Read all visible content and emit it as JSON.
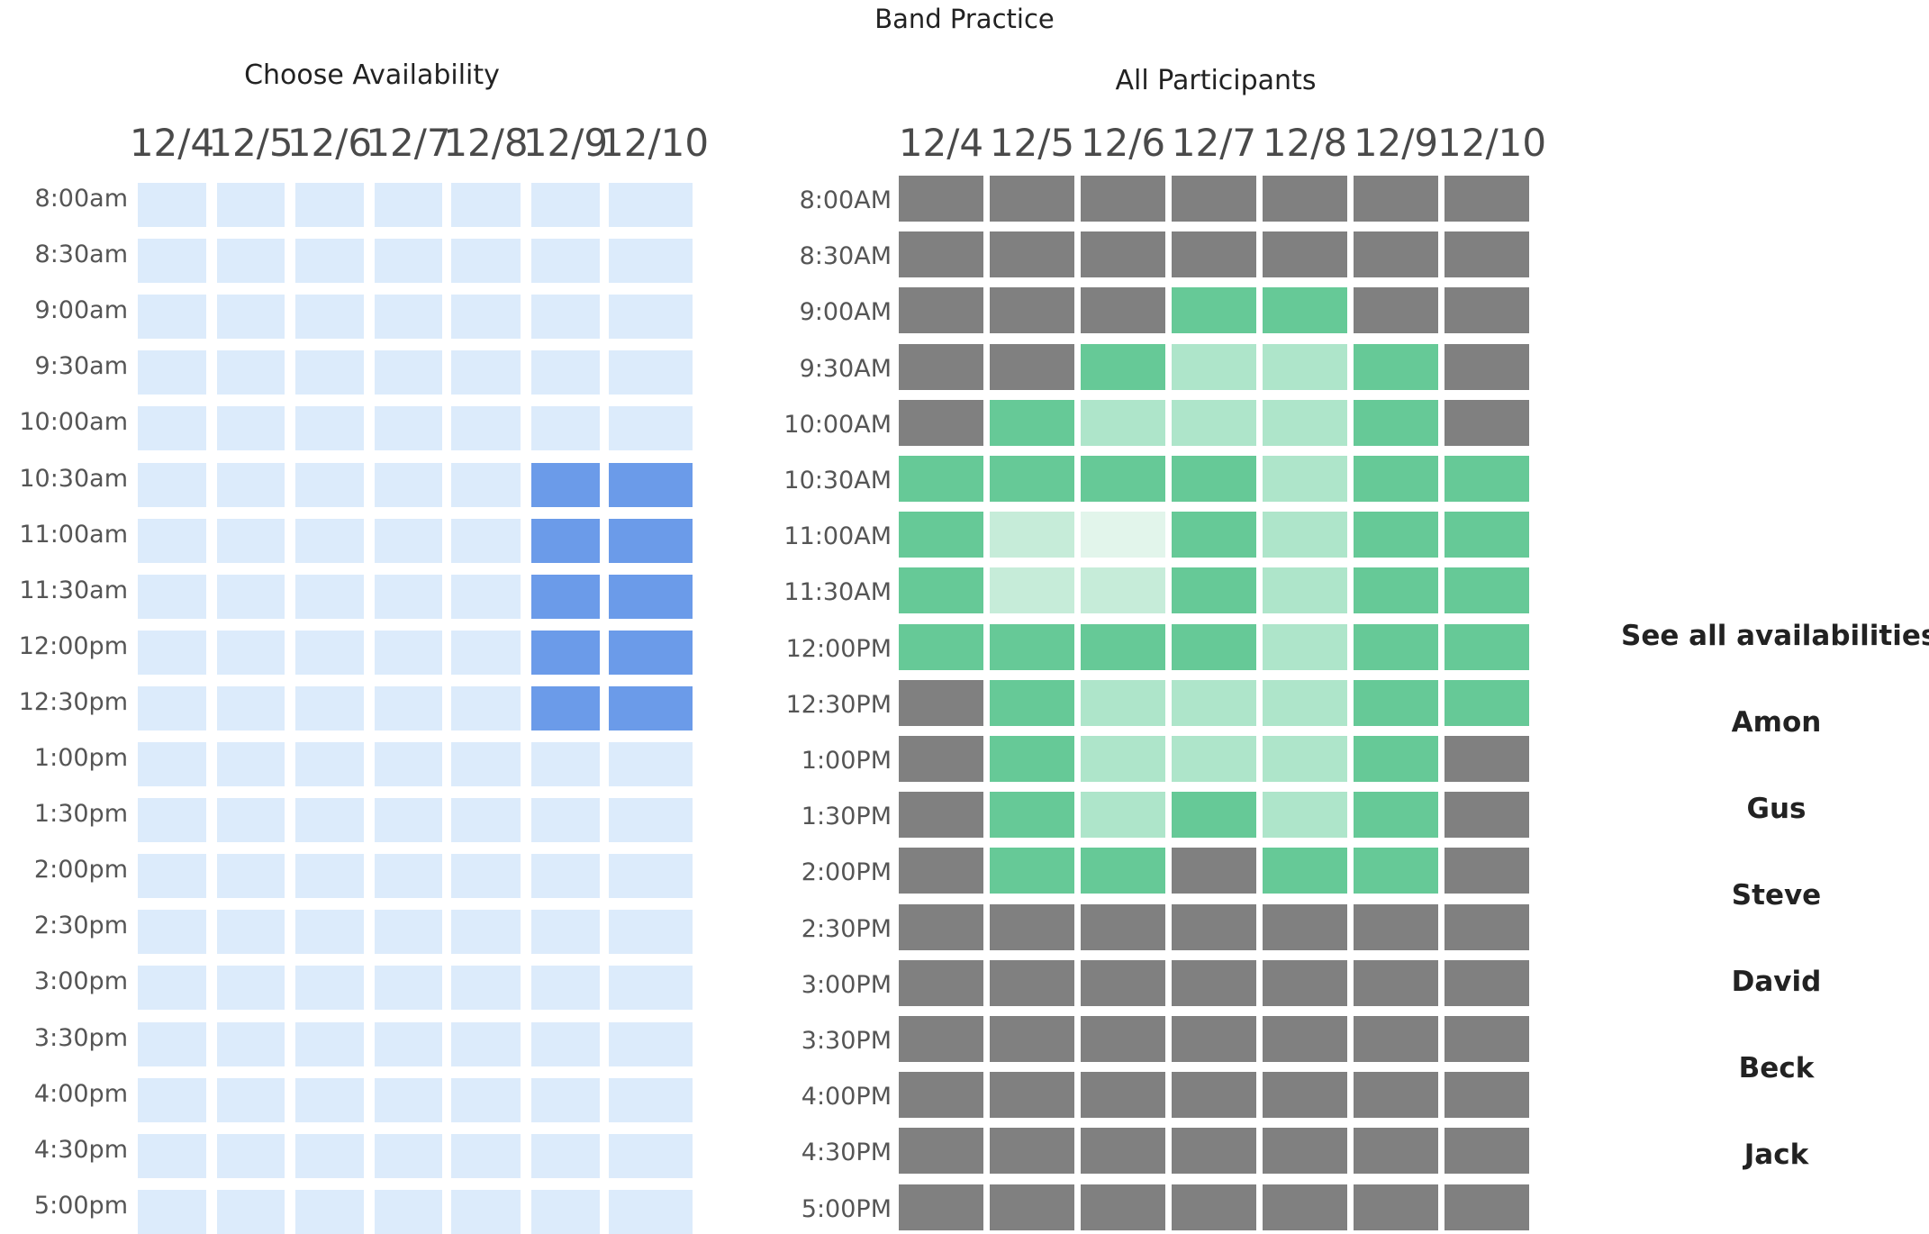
{
  "event": {
    "title": "Band Practice"
  },
  "choose": {
    "title": "Choose Availability",
    "days": [
      "12/4",
      "12/5",
      "12/6",
      "12/7",
      "12/8",
      "12/9",
      "12/10"
    ],
    "times": [
      "8:00am",
      "8:30am",
      "9:00am",
      "9:30am",
      "10:00am",
      "10:30am",
      "11:00am",
      "11:30am",
      "12:00pm",
      "12:30pm",
      "1:00pm",
      "1:30pm",
      "2:00pm",
      "2:30pm",
      "3:00pm",
      "3:30pm",
      "4:00pm",
      "4:30pm",
      "5:00pm"
    ],
    "selected": [
      [
        0,
        0,
        0,
        0,
        0,
        0,
        0
      ],
      [
        0,
        0,
        0,
        0,
        0,
        0,
        0
      ],
      [
        0,
        0,
        0,
        0,
        0,
        0,
        0
      ],
      [
        0,
        0,
        0,
        0,
        0,
        0,
        0
      ],
      [
        0,
        0,
        0,
        0,
        0,
        0,
        0
      ],
      [
        0,
        0,
        0,
        0,
        0,
        1,
        1
      ],
      [
        0,
        0,
        0,
        0,
        0,
        1,
        1
      ],
      [
        0,
        0,
        0,
        0,
        0,
        1,
        1
      ],
      [
        0,
        0,
        0,
        0,
        0,
        1,
        1
      ],
      [
        0,
        0,
        0,
        0,
        0,
        1,
        1
      ],
      [
        0,
        0,
        0,
        0,
        0,
        0,
        0
      ],
      [
        0,
        0,
        0,
        0,
        0,
        0,
        0
      ],
      [
        0,
        0,
        0,
        0,
        0,
        0,
        0
      ],
      [
        0,
        0,
        0,
        0,
        0,
        0,
        0
      ],
      [
        0,
        0,
        0,
        0,
        0,
        0,
        0
      ],
      [
        0,
        0,
        0,
        0,
        0,
        0,
        0
      ],
      [
        0,
        0,
        0,
        0,
        0,
        0,
        0
      ],
      [
        0,
        0,
        0,
        0,
        0,
        0,
        0
      ],
      [
        0,
        0,
        0,
        0,
        0,
        0,
        0
      ]
    ],
    "colors": {
      "unselected": "#dcebfb",
      "selected": "#6b9be9"
    }
  },
  "group": {
    "title": "All Participants",
    "days": [
      "12/4",
      "12/5",
      "12/6",
      "12/7",
      "12/8",
      "12/9",
      "12/10"
    ],
    "times": [
      "8:00AM",
      "8:30AM",
      "9:00AM",
      "9:30AM",
      "10:00AM",
      "10:30AM",
      "11:00AM",
      "11:30AM",
      "12:00PM",
      "12:30PM",
      "1:00PM",
      "1:30PM",
      "2:00PM",
      "2:30PM",
      "3:00PM",
      "3:30PM",
      "4:00PM",
      "4:30PM",
      "5:00PM"
    ],
    "heat": [
      [
        0,
        0,
        0,
        0,
        0,
        0,
        0
      ],
      [
        0,
        0,
        0,
        0,
        0,
        0,
        0
      ],
      [
        0,
        0,
        0,
        4,
        4,
        0,
        0
      ],
      [
        0,
        0,
        4,
        3,
        3,
        4,
        0
      ],
      [
        0,
        4,
        3,
        3,
        3,
        4,
        0
      ],
      [
        4,
        4,
        4,
        4,
        3,
        4,
        4
      ],
      [
        4,
        2,
        1,
        4,
        3,
        4,
        4
      ],
      [
        4,
        2,
        2,
        4,
        3,
        4,
        4
      ],
      [
        4,
        4,
        4,
        4,
        3,
        4,
        4
      ],
      [
        0,
        4,
        3,
        3,
        3,
        4,
        4
      ],
      [
        0,
        4,
        3,
        3,
        3,
        4,
        0
      ],
      [
        0,
        4,
        3,
        4,
        3,
        4,
        0
      ],
      [
        0,
        4,
        4,
        0,
        4,
        4,
        0
      ],
      [
        0,
        0,
        0,
        0,
        0,
        0,
        0
      ],
      [
        0,
        0,
        0,
        0,
        0,
        0,
        0
      ],
      [
        0,
        0,
        0,
        0,
        0,
        0,
        0
      ],
      [
        0,
        0,
        0,
        0,
        0,
        0,
        0
      ],
      [
        0,
        0,
        0,
        0,
        0,
        0,
        0
      ],
      [
        0,
        0,
        0,
        0,
        0,
        0,
        0
      ]
    ],
    "colors": {
      "none": "#808080",
      "level1": "#e2f5eb",
      "level2": "#c6ecd9",
      "level3": "#aee5ca",
      "level4": "#66c997"
    }
  },
  "participants": {
    "header": "See all availabilities",
    "names": [
      "Amon",
      "Gus",
      "Steve",
      "David",
      "Beck",
      "Jack"
    ]
  }
}
